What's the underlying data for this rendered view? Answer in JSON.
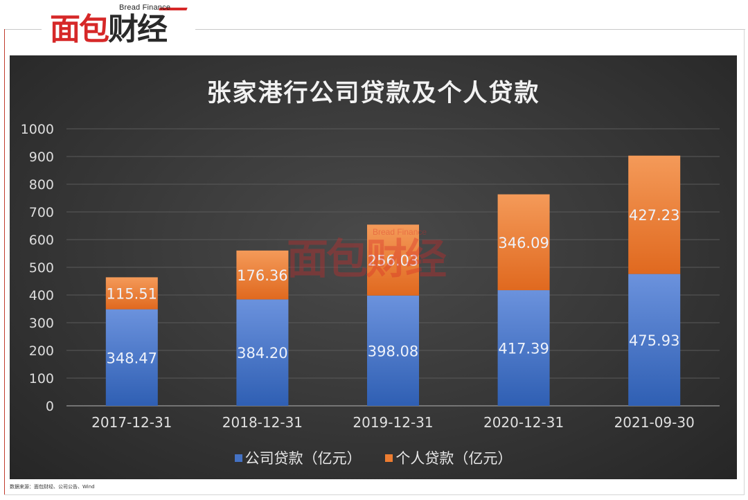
{
  "brand": {
    "logo_cn_red": "面包",
    "logo_cn_dark": "财经",
    "logo_en": "Bread Finance"
  },
  "watermark": {
    "cn": "面包财经",
    "en": "Bread Finance"
  },
  "source_note": "数据来源：面包财经、公司公告、Wind",
  "colors": {
    "corporate": "#4472c4",
    "personal": "#ed7d31",
    "panel_bg": "#3a3a3a",
    "brand_red": "#d62828"
  },
  "chart_data": {
    "type": "bar",
    "stacked": true,
    "title": "张家港行公司贷款及个人贷款",
    "categories": [
      "2017-12-31",
      "2018-12-31",
      "2019-12-31",
      "2020-12-31",
      "2021-09-30"
    ],
    "series": [
      {
        "name": "公司贷款（亿元）",
        "values": [
          348.47,
          384.2,
          398.08,
          417.39,
          475.93
        ],
        "labels": [
          "348.47",
          "384.20",
          "398.08",
          "417.39",
          "475.93"
        ]
      },
      {
        "name": "个人贷款（亿元）",
        "values": [
          115.51,
          176.36,
          256.03,
          346.09,
          427.23
        ],
        "labels": [
          "115.51",
          "176.36",
          "256.03",
          "346.09",
          "427.23"
        ]
      }
    ],
    "yticks": [
      "0",
      "100",
      "200",
      "300",
      "400",
      "500",
      "600",
      "700",
      "800",
      "900",
      "1000"
    ],
    "ylim": [
      0,
      1000
    ],
    "grid": true,
    "legend": "bottom"
  }
}
